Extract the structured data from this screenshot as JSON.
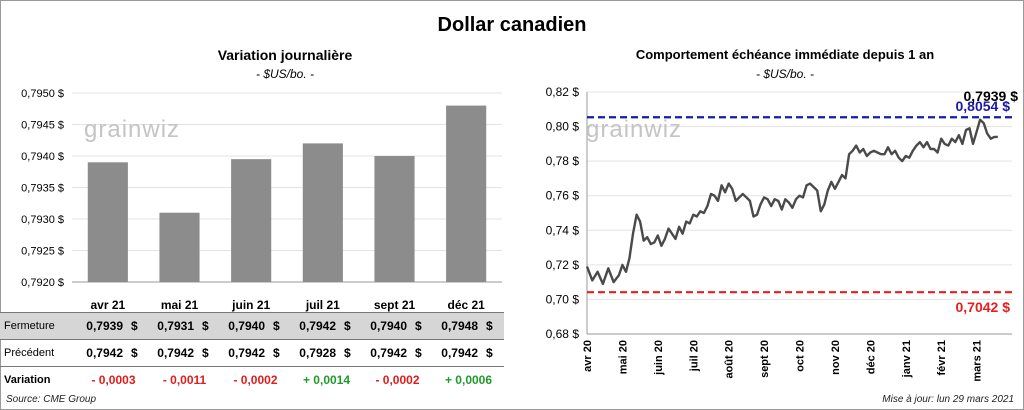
{
  "title": "Dollar canadien",
  "left_panel": {
    "title": "Variation  journalière",
    "unit": "- $US/bo. -"
  },
  "right_panel": {
    "title": "Comportement échéance immédiate depuis 1 an",
    "unit": "- $US/bo. -"
  },
  "watermark": "grainwiz",
  "table": {
    "rows": [
      {
        "label": "Fermeture",
        "values": [
          "0,7939",
          "0,7931",
          "0,7940",
          "0,7942",
          "0,7940",
          "0,7948"
        ]
      },
      {
        "label": "Précédent",
        "values": [
          "0,7942",
          "0,7942",
          "0,7942",
          "0,7928",
          "0,7942",
          "0,7942"
        ]
      }
    ],
    "currency": "$",
    "variation": {
      "label": "Variation",
      "values": [
        "- 0,0003",
        "- 0,0011",
        "- 0,0002",
        "+ 0,0014",
        "- 0,0002",
        "+ 0,0006"
      ]
    }
  },
  "footer": {
    "source": "Source: CME Group",
    "updated": "Mise à jour: lun 29 mars 2021"
  },
  "colors": {
    "bar": "#8c8c8c",
    "line": "#4a4a4a",
    "high": "#1a1aa8",
    "low": "#e61e1e",
    "grid": "#e3e3e3"
  },
  "chart_data": [
    {
      "type": "bar",
      "title": "Variation  journalière",
      "subtitle": "- $US/bo. -",
      "categories": [
        "avr 21",
        "mai 21",
        "juin 21",
        "juil 21",
        "sept 21",
        "déc 21"
      ],
      "values": [
        0.7939,
        0.7931,
        0.79395,
        0.7942,
        0.794,
        0.7948
      ],
      "ylim": [
        0.792,
        0.795
      ],
      "yticks": [
        "0,7920 $",
        "0,7925 $",
        "0,7930 $",
        "0,7935 $",
        "0,7940 $",
        "0,7945 $",
        "0,7950 $"
      ],
      "grid": true
    },
    {
      "type": "line",
      "title": "Comportement échéance immédiate depuis 1 an",
      "subtitle": "- $US/bo. -",
      "ylim": [
        0.68,
        0.82
      ],
      "yticks": [
        "0,68 $",
        "0,70 $",
        "0,72 $",
        "0,74 $",
        "0,76 $",
        "0,78 $",
        "0,80 $",
        "0,82 $"
      ],
      "xticks": [
        "avr 20",
        "mai 20",
        "juin 20",
        "juil 20",
        "août 20",
        "sept 20",
        "oct 20",
        "nov 20",
        "déc 20",
        "janv 21",
        "févr 21",
        "mars 21"
      ],
      "grid": true,
      "series": [
        {
          "x": [
            0,
            0.15,
            0.3,
            0.45,
            0.6,
            0.75,
            0.9,
            1.0,
            1.1,
            1.2,
            1.3,
            1.4,
            1.5,
            1.6,
            1.7,
            1.8,
            1.9,
            2.0,
            2.1,
            2.2,
            2.3,
            2.4,
            2.5,
            2.6,
            2.7,
            2.8,
            2.9,
            3.0,
            3.1,
            3.2,
            3.3,
            3.4,
            3.5,
            3.6,
            3.7,
            3.8,
            3.9,
            4.0,
            4.1,
            4.2,
            4.3,
            4.4,
            4.5,
            4.6,
            4.7,
            4.8,
            4.9,
            5.0,
            5.1,
            5.2,
            5.3,
            5.4,
            5.5,
            5.6,
            5.7,
            5.8,
            5.9,
            6.0,
            6.1,
            6.2,
            6.3,
            6.4,
            6.5,
            6.6,
            6.7,
            6.8,
            6.9,
            7.0,
            7.1,
            7.2,
            7.3,
            7.4,
            7.5,
            7.6,
            7.7,
            7.8,
            7.9,
            8.0,
            8.1,
            8.2,
            8.3,
            8.4,
            8.5,
            8.6,
            8.7,
            8.8,
            8.9,
            9.0,
            9.1,
            9.2,
            9.3,
            9.4,
            9.5,
            9.6,
            9.7,
            9.8,
            9.9,
            10.0,
            10.1,
            10.2,
            10.3,
            10.4,
            10.5,
            10.6,
            10.7,
            10.8,
            10.9,
            11.0,
            11.1,
            11.2,
            11.3,
            11.4,
            11.5,
            11.6
          ],
          "y": [
            0.719,
            0.711,
            0.716,
            0.709,
            0.718,
            0.71,
            0.714,
            0.72,
            0.716,
            0.724,
            0.738,
            0.749,
            0.745,
            0.734,
            0.736,
            0.732,
            0.733,
            0.737,
            0.731,
            0.735,
            0.741,
            0.738,
            0.735,
            0.742,
            0.738,
            0.745,
            0.744,
            0.749,
            0.748,
            0.751,
            0.75,
            0.754,
            0.761,
            0.76,
            0.757,
            0.766,
            0.762,
            0.767,
            0.764,
            0.757,
            0.759,
            0.761,
            0.759,
            0.757,
            0.748,
            0.749,
            0.755,
            0.759,
            0.758,
            0.754,
            0.758,
            0.757,
            0.752,
            0.758,
            0.756,
            0.753,
            0.758,
            0.76,
            0.759,
            0.766,
            0.767,
            0.765,
            0.763,
            0.751,
            0.755,
            0.763,
            0.768,
            0.764,
            0.768,
            0.772,
            0.77,
            0.784,
            0.786,
            0.789,
            0.785,
            0.787,
            0.783,
            0.785,
            0.786,
            0.785,
            0.784,
            0.784,
            0.788,
            0.784,
            0.786,
            0.782,
            0.78,
            0.783,
            0.782,
            0.786,
            0.789,
            0.791,
            0.788,
            0.791,
            0.787,
            0.787,
            0.785,
            0.793,
            0.79,
            0.789,
            0.793,
            0.791,
            0.795,
            0.79,
            0.798,
            0.799,
            0.79,
            0.797,
            0.804,
            0.802,
            0.796,
            0.793,
            0.794,
            0.794
          ],
          "color": "#4a4a4a"
        }
      ],
      "reference_lines": [
        {
          "value": 0.8054,
          "label": "0,8054 $",
          "color": "#1a1aa8",
          "style": "dashed"
        },
        {
          "value": 0.7042,
          "label": "0,7042 $",
          "color": "#e61e1e",
          "style": "dashed"
        }
      ],
      "last_value_label": "0,7939 $"
    }
  ]
}
